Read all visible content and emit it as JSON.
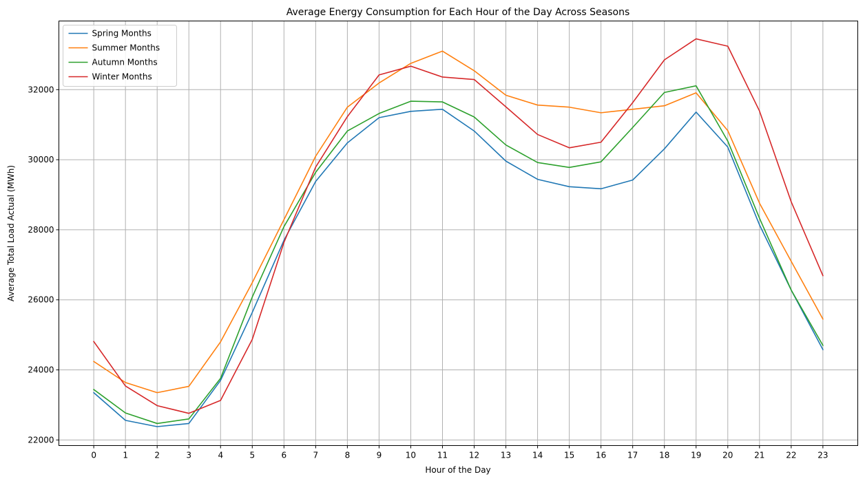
{
  "chart_data": {
    "type": "line",
    "title": "Average Energy Consumption for Each Hour of the Day Across Seasons",
    "xlabel": "Hour of the Day",
    "ylabel": "Average Total Load Actual (MWh)",
    "x": [
      0,
      1,
      2,
      3,
      4,
      5,
      6,
      7,
      8,
      9,
      10,
      11,
      12,
      13,
      14,
      15,
      16,
      17,
      18,
      19,
      20,
      21,
      22,
      23
    ],
    "x_tick_labels": [
      "0",
      "1",
      "2",
      "3",
      "4",
      "5",
      "6",
      "7",
      "8",
      "9",
      "10",
      "11",
      "12",
      "13",
      "14",
      "15",
      "16",
      "17",
      "18",
      "19",
      "20",
      "21",
      "22",
      "23"
    ],
    "xlim": [
      -1.1,
      24.1
    ],
    "ylim": [
      21840,
      33960
    ],
    "y_ticks": [
      22000,
      24000,
      26000,
      28000,
      30000,
      32000
    ],
    "y_tick_labels": [
      "22000",
      "24000",
      "26000",
      "28000",
      "30000",
      "32000"
    ],
    "grid": true,
    "legend_position": "top-left",
    "series": [
      {
        "name": "Spring Months",
        "color": "#1f77b4",
        "values": [
          23350,
          22560,
          22380,
          22470,
          23700,
          25640,
          27700,
          29380,
          30480,
          31200,
          31380,
          31440,
          30820,
          29960,
          29440,
          29230,
          29170,
          29420,
          30310,
          31360,
          30360,
          28140,
          26280,
          24580
        ]
      },
      {
        "name": "Summer Months",
        "color": "#ff7f0e",
        "values": [
          24240,
          23640,
          23350,
          23530,
          24800,
          26490,
          28290,
          30100,
          31500,
          32190,
          32750,
          33100,
          32540,
          31840,
          31560,
          31500,
          31340,
          31440,
          31540,
          31910,
          30830,
          28760,
          27100,
          25450
        ]
      },
      {
        "name": "Autumn Months",
        "color": "#2ca02c",
        "values": [
          23440,
          22770,
          22470,
          22600,
          23760,
          26080,
          28090,
          29640,
          30820,
          31320,
          31670,
          31650,
          31220,
          30420,
          29920,
          29780,
          29940,
          30920,
          31920,
          32110,
          30530,
          28330,
          26280,
          24700
        ]
      },
      {
        "name": "Winter Months",
        "color": "#d62728",
        "values": [
          24810,
          23540,
          22980,
          22760,
          23130,
          24870,
          27640,
          29790,
          31230,
          32420,
          32670,
          32360,
          32290,
          31510,
          30720,
          30340,
          30500,
          31630,
          32850,
          33450,
          33240,
          31390,
          28800,
          26690
        ]
      }
    ]
  }
}
